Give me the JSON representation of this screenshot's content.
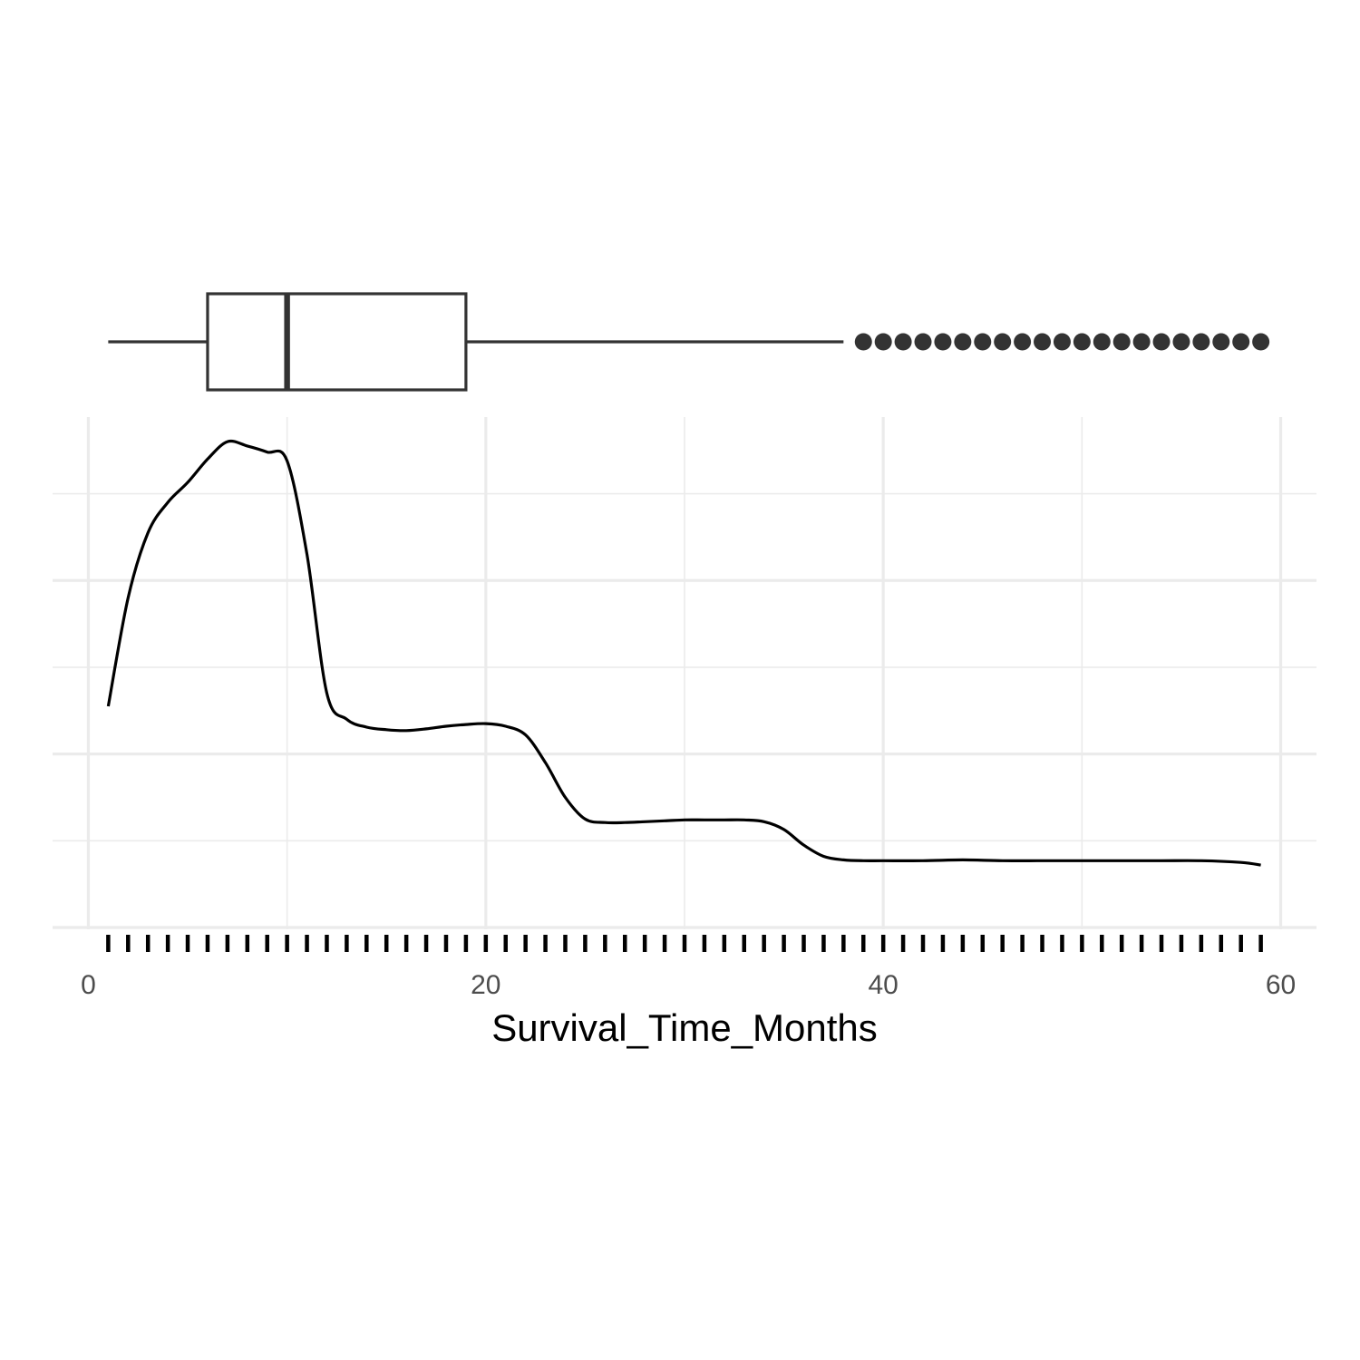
{
  "chart_data": [
    {
      "type": "box",
      "variable": "Survival_Time_Months",
      "whisker_low": 1,
      "q1": 6,
      "median": 10,
      "q3": 19,
      "whisker_high": 38,
      "outliers": [
        39,
        40,
        41,
        42,
        43,
        44,
        45,
        46,
        47,
        48,
        49,
        50,
        51,
        52,
        53,
        54,
        55,
        56,
        57,
        58,
        59
      ],
      "xlim": [
        -1.8,
        61.8
      ]
    },
    {
      "type": "line",
      "subtype": "density",
      "xlabel": "Survival_Time_Months",
      "ylabel": "",
      "xlim": [
        -1.8,
        61.8
      ],
      "ylim": [
        0,
        0.058
      ],
      "x_ticks": [
        0,
        20,
        40,
        60
      ],
      "x_tick_labels": [
        "0",
        "20",
        "40",
        "60"
      ],
      "y_ticks_major": [
        0,
        0.02,
        0.04
      ],
      "y_ticks_minor": [
        0.01,
        0.03,
        0.05
      ],
      "grid": true,
      "density_x": [
        1,
        2,
        3,
        4,
        5,
        6,
        7,
        8,
        9,
        10,
        11,
        12,
        13,
        14,
        15,
        16,
        17,
        18,
        19,
        20,
        21,
        22,
        23,
        24,
        25,
        26,
        27,
        28,
        29,
        30,
        31,
        32,
        33,
        34,
        35,
        36,
        37,
        38,
        39,
        40,
        42,
        44,
        46,
        48,
        50,
        52,
        54,
        56,
        58,
        59
      ],
      "density_y": [
        0.0255,
        0.038,
        0.0455,
        0.049,
        0.0513,
        0.054,
        0.056,
        0.0555,
        0.0548,
        0.0538,
        0.043,
        0.027,
        0.024,
        0.0231,
        0.0228,
        0.0227,
        0.0229,
        0.0232,
        0.0234,
        0.0235,
        0.0232,
        0.0222,
        0.019,
        0.015,
        0.0125,
        0.0121,
        0.0121,
        0.0122,
        0.0123,
        0.0124,
        0.0124,
        0.0124,
        0.0124,
        0.0122,
        0.0113,
        0.0095,
        0.0082,
        0.0078,
        0.0077,
        0.0077,
        0.0077,
        0.0078,
        0.0077,
        0.0077,
        0.0077,
        0.0077,
        0.0077,
        0.0077,
        0.0075,
        0.0072
      ],
      "rug": [
        1,
        2,
        3,
        4,
        5,
        6,
        7,
        8,
        9,
        10,
        11,
        12,
        13,
        14,
        15,
        16,
        17,
        18,
        19,
        20,
        21,
        22,
        23,
        24,
        25,
        26,
        27,
        28,
        29,
        30,
        31,
        32,
        33,
        34,
        35,
        36,
        37,
        38,
        39,
        40,
        41,
        42,
        43,
        44,
        45,
        46,
        47,
        48,
        49,
        50,
        51,
        52,
        53,
        54,
        55,
        56,
        57,
        58,
        59
      ]
    }
  ]
}
